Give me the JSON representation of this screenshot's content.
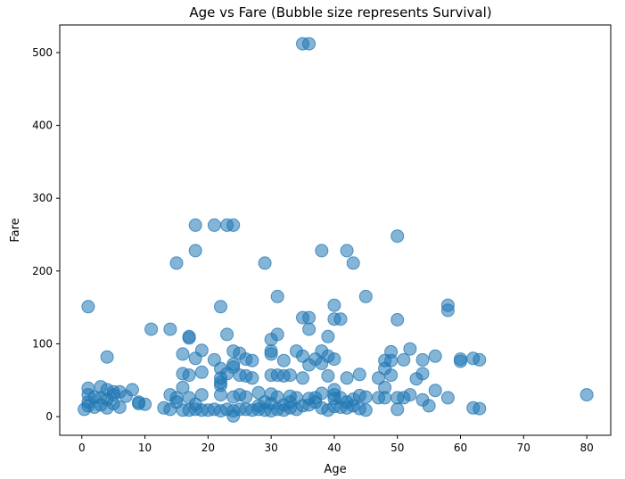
{
  "chart_data": {
    "type": "scatter",
    "title": "Age vs Fare (Bubble size represents Survival)",
    "xlabel": "Age",
    "ylabel": "Fare",
    "xlim": [
      -3.5,
      83.8
    ],
    "ylim": [
      -25.6,
      537.9
    ],
    "xticks": [
      0,
      10,
      20,
      30,
      40,
      50,
      60,
      70,
      80
    ],
    "yticks": [
      0,
      100,
      200,
      300,
      400,
      500
    ],
    "grid": false,
    "legend": "none",
    "colors": {
      "marker": "#1f77b4",
      "marker_alpha": 0.55,
      "axis": "#000000"
    },
    "points": [
      [
        35,
        512
      ],
      [
        36,
        512
      ],
      [
        18,
        263
      ],
      [
        21,
        263
      ],
      [
        23,
        263
      ],
      [
        24,
        263
      ],
      [
        50,
        248
      ],
      [
        18,
        228
      ],
      [
        38,
        228
      ],
      [
        42,
        228
      ],
      [
        15,
        211
      ],
      [
        29,
        211
      ],
      [
        43,
        211
      ],
      [
        31,
        165
      ],
      [
        45,
        165
      ],
      [
        1,
        151
      ],
      [
        22,
        151
      ],
      [
        40,
        153
      ],
      [
        58,
        153
      ],
      [
        58,
        146
      ],
      [
        35,
        136
      ],
      [
        36,
        136
      ],
      [
        40,
        134
      ],
      [
        41,
        134
      ],
      [
        50,
        133
      ],
      [
        11,
        120
      ],
      [
        14,
        120
      ],
      [
        36,
        120
      ],
      [
        23,
        113
      ],
      [
        31,
        113
      ],
      [
        39,
        110
      ],
      [
        17,
        110
      ],
      [
        17,
        108
      ],
      [
        30,
        106
      ],
      [
        52,
        93
      ],
      [
        49,
        89
      ],
      [
        24,
        90
      ],
      [
        19,
        91
      ],
      [
        30,
        90
      ],
      [
        34,
        90
      ],
      [
        38,
        90
      ],
      [
        16,
        86
      ],
      [
        25,
        87
      ],
      [
        30,
        86
      ],
      [
        35,
        83
      ],
      [
        39,
        83
      ],
      [
        56,
        83
      ],
      [
        4,
        82
      ],
      [
        18,
        80
      ],
      [
        26,
        79
      ],
      [
        37,
        79
      ],
      [
        40,
        79
      ],
      [
        48,
        77
      ],
      [
        49,
        77
      ],
      [
        51,
        78
      ],
      [
        54,
        78
      ],
      [
        60,
        79
      ],
      [
        60,
        76
      ],
      [
        62,
        80
      ],
      [
        63,
        78
      ],
      [
        21,
        78
      ],
      [
        27,
        77
      ],
      [
        32,
        77
      ],
      [
        38,
        73
      ],
      [
        24,
        72
      ],
      [
        36,
        71
      ],
      [
        22,
        66
      ],
      [
        24,
        68
      ],
      [
        48,
        66
      ],
      [
        19,
        61
      ],
      [
        16,
        59
      ],
      [
        23,
        59
      ],
      [
        25,
        57
      ],
      [
        30,
        57
      ],
      [
        31,
        57
      ],
      [
        33,
        57
      ],
      [
        39,
        56
      ],
      [
        42,
        53
      ],
      [
        44,
        58
      ],
      [
        47,
        53
      ],
      [
        49,
        57
      ],
      [
        54,
        59
      ],
      [
        17,
        57
      ],
      [
        27,
        53
      ],
      [
        22,
        53
      ],
      [
        22,
        47
      ],
      [
        35,
        53
      ],
      [
        53,
        52
      ],
      [
        26,
        56
      ],
      [
        32,
        56
      ],
      [
        16,
        40
      ],
      [
        22,
        43
      ],
      [
        48,
        40
      ],
      [
        56,
        36
      ],
      [
        40,
        37
      ],
      [
        1,
        39
      ],
      [
        3,
        41
      ],
      [
        4,
        37
      ],
      [
        2,
        27
      ],
      [
        3,
        26
      ],
      [
        5,
        34
      ],
      [
        6,
        34
      ],
      [
        8,
        37
      ],
      [
        14,
        30
      ],
      [
        22,
        30
      ],
      [
        25,
        30
      ],
      [
        30,
        31
      ],
      [
        33,
        28
      ],
      [
        38,
        32
      ],
      [
        40,
        30
      ],
      [
        44,
        29
      ],
      [
        45,
        27
      ],
      [
        47,
        26
      ],
      [
        48,
        26
      ],
      [
        50,
        26
      ],
      [
        51,
        26
      ],
      [
        52,
        30
      ],
      [
        54,
        23
      ],
      [
        58,
        26
      ],
      [
        80,
        30
      ],
      [
        15,
        26
      ],
      [
        17,
        26
      ],
      [
        19,
        30
      ],
      [
        24,
        27
      ],
      [
        26,
        27
      ],
      [
        28,
        33
      ],
      [
        31,
        27
      ],
      [
        34,
        26
      ],
      [
        37,
        26
      ],
      [
        41,
        26
      ],
      [
        43,
        24
      ],
      [
        1,
        30
      ],
      [
        5,
        30
      ],
      [
        7,
        28
      ],
      [
        9,
        20
      ],
      [
        4,
        24
      ],
      [
        13,
        12
      ],
      [
        10,
        17
      ],
      [
        0.4,
        10
      ],
      [
        1,
        15
      ],
      [
        1,
        20
      ],
      [
        2,
        13
      ],
      [
        3,
        16
      ],
      [
        4,
        12
      ],
      [
        5,
        18
      ],
      [
        6,
        13
      ],
      [
        9,
        18
      ],
      [
        14,
        10
      ],
      [
        16,
        9
      ],
      [
        17,
        9
      ],
      [
        18,
        10
      ],
      [
        19,
        9
      ],
      [
        20,
        9
      ],
      [
        21,
        10
      ],
      [
        22,
        8
      ],
      [
        23,
        10
      ],
      [
        24,
        8
      ],
      [
        25,
        10
      ],
      [
        26,
        10
      ],
      [
        27,
        9
      ],
      [
        28,
        10
      ],
      [
        29,
        9
      ],
      [
        30,
        8
      ],
      [
        31,
        10
      ],
      [
        32,
        9
      ],
      [
        33,
        12
      ],
      [
        34,
        10
      ],
      [
        35,
        15
      ],
      [
        36,
        16
      ],
      [
        38,
        12
      ],
      [
        39,
        9
      ],
      [
        40,
        14
      ],
      [
        41,
        13
      ],
      [
        42,
        12
      ],
      [
        43,
        15
      ],
      [
        44,
        11
      ],
      [
        45,
        9
      ],
      [
        50,
        10
      ],
      [
        55,
        15
      ],
      [
        62,
        12
      ],
      [
        63,
        11
      ],
      [
        15,
        20
      ],
      [
        18,
        17
      ],
      [
        24,
        1
      ],
      [
        29,
        20
      ],
      [
        33,
        20
      ],
      [
        37,
        20
      ],
      [
        40,
        25
      ],
      [
        42,
        20
      ],
      [
        36,
        25
      ],
      [
        28,
        15
      ],
      [
        32,
        16
      ],
      [
        30,
        18
      ]
    ]
  }
}
